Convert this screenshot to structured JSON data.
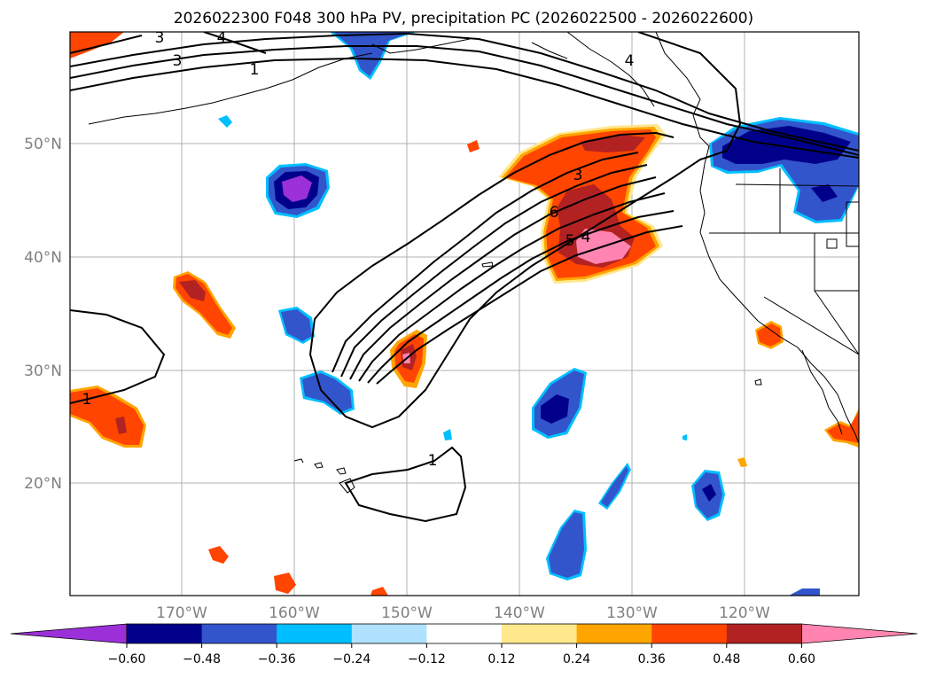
{
  "title": "2026022300 F048 300 hPa PV, precipitation PC (2026022500 - 2026022600)",
  "lat_labels": [
    "50°N",
    "40°N",
    "30°N",
    "20°N"
  ],
  "lon_labels": [
    "170°W",
    "160°W",
    "150°W",
    "140°W",
    "130°W",
    "120°W"
  ],
  "colorbar": {
    "extend": "both",
    "colors": [
      "#9b30d8",
      "#00008b",
      "#3355cc",
      "#00bfff",
      "#b0e2ff",
      "#ffffff",
      "#ffe88c",
      "#ffa500",
      "#ff4500",
      "#b22222",
      "#ff85b0",
      "#ff85b0"
    ],
    "tick_labels": [
      "−0.60",
      "−0.48",
      "−0.36",
      "−0.24",
      "−0.12",
      "0.12",
      "0.24",
      "0.36",
      "0.48",
      "0.60"
    ]
  },
  "contour_labels": [
    "3",
    "4",
    "3",
    "1",
    "4",
    "3",
    "6",
    "5",
    "4",
    "1",
    "1"
  ],
  "colors": {
    "gridline": "#b0b0b0",
    "contour": "#000000",
    "land_line": "#000000"
  }
}
